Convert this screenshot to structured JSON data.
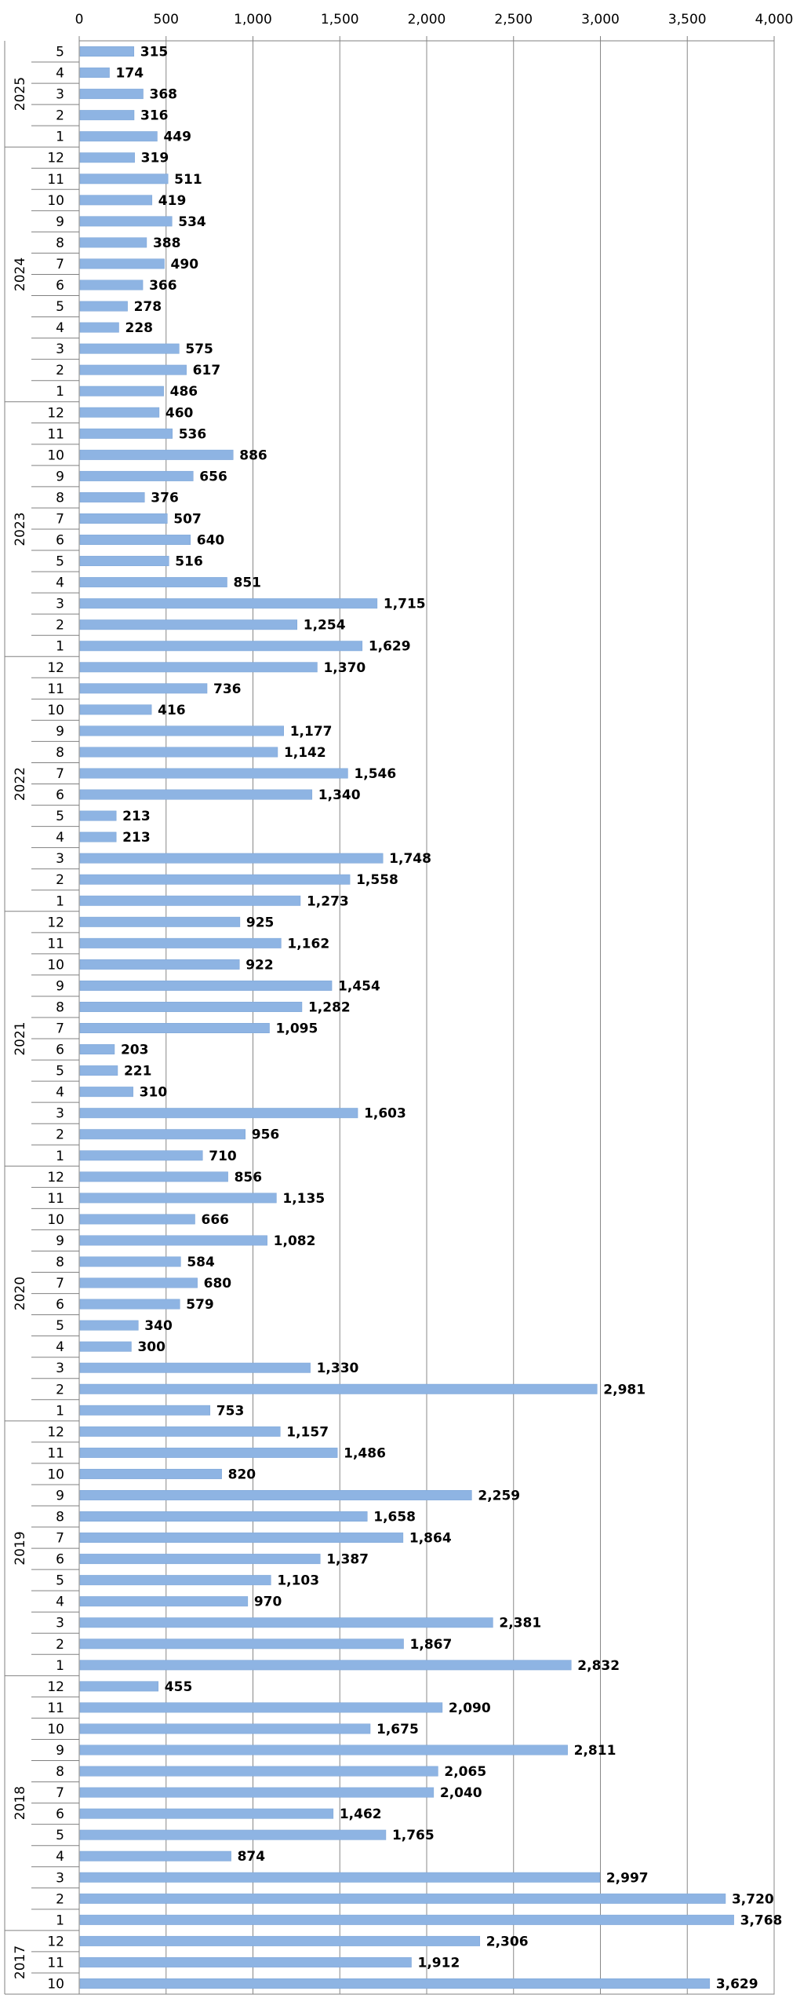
{
  "chart_data": {
    "type": "bar",
    "orientation": "horizontal",
    "x_ticks": [
      "0",
      "500",
      "1,000",
      "1,500",
      "2,000",
      "2,500",
      "3,000",
      "3,500",
      "4,000"
    ],
    "xlim": [
      0,
      4000
    ],
    "grid": true,
    "colors": {
      "bar": "#8eb4e3",
      "bar_edge": "#7aa3d6",
      "grid": "#888888",
      "axis": "#808080",
      "text": "#000000"
    },
    "groups": [
      {
        "year": "2025",
        "months": [
          "5",
          "4",
          "3",
          "2",
          "1"
        ],
        "values": [
          315,
          174,
          368,
          316,
          449
        ],
        "labels": [
          "315",
          "174",
          "368",
          "316",
          "449"
        ]
      },
      {
        "year": "2024",
        "months": [
          "12",
          "11",
          "10",
          "9",
          "8",
          "7",
          "6",
          "5",
          "4",
          "3",
          "2",
          "1"
        ],
        "values": [
          319,
          511,
          419,
          534,
          388,
          490,
          366,
          278,
          228,
          575,
          617,
          486
        ],
        "labels": [
          "319",
          "511",
          "419",
          "534",
          "388",
          "490",
          "366",
          "278",
          "228",
          "575",
          "617",
          "486"
        ]
      },
      {
        "year": "2023",
        "months": [
          "12",
          "11",
          "10",
          "9",
          "8",
          "7",
          "6",
          "5",
          "4",
          "3",
          "2",
          "1"
        ],
        "values": [
          460,
          536,
          886,
          656,
          376,
          507,
          640,
          516,
          851,
          1715,
          1254,
          1629
        ],
        "labels": [
          "460",
          "536",
          "886",
          "656",
          "376",
          "507",
          "640",
          "516",
          "851",
          "1,715",
          "1,254",
          "1,629"
        ]
      },
      {
        "year": "2022",
        "months": [
          "12",
          "11",
          "10",
          "9",
          "8",
          "7",
          "6",
          "5",
          "4",
          "3",
          "2",
          "1"
        ],
        "values": [
          1370,
          736,
          416,
          1177,
          1142,
          1546,
          1340,
          213,
          213,
          1748,
          1558,
          1273
        ],
        "labels": [
          "1,370",
          "736",
          "416",
          "1,177",
          "1,142",
          "1,546",
          "1,340",
          "213",
          "213",
          "1,748",
          "1,558",
          "1,273"
        ]
      },
      {
        "year": "2021",
        "months": [
          "12",
          "11",
          "10",
          "9",
          "8",
          "7",
          "6",
          "5",
          "4",
          "3",
          "2",
          "1"
        ],
        "values": [
          925,
          1162,
          922,
          1454,
          1282,
          1095,
          203,
          221,
          310,
          1603,
          956,
          710
        ],
        "labels": [
          "925",
          "1,162",
          "922",
          "1,454",
          "1,282",
          "1,095",
          "203",
          "221",
          "310",
          "1,603",
          "956",
          "710"
        ]
      },
      {
        "year": "2020",
        "months": [
          "12",
          "11",
          "10",
          "9",
          "8",
          "7",
          "6",
          "5",
          "4",
          "3",
          "2",
          "1"
        ],
        "values": [
          856,
          1135,
          666,
          1082,
          584,
          680,
          579,
          340,
          300,
          1330,
          2981,
          753
        ],
        "labels": [
          "856",
          "1,135",
          "666",
          "1,082",
          "584",
          "680",
          "579",
          "340",
          "300",
          "1,330",
          "2,981",
          "753"
        ]
      },
      {
        "year": "2019",
        "months": [
          "12",
          "11",
          "10",
          "9",
          "8",
          "7",
          "6",
          "5",
          "4",
          "3",
          "2",
          "1"
        ],
        "values": [
          1157,
          1486,
          820,
          2259,
          1658,
          1864,
          1387,
          1103,
          970,
          2381,
          1867,
          2832
        ],
        "labels": [
          "1,157",
          "1,486",
          "820",
          "2,259",
          "1,658",
          "1,864",
          "1,387",
          "1,103",
          "970",
          "2,381",
          "1,867",
          "2,832"
        ]
      },
      {
        "year": "2018",
        "months": [
          "12",
          "11",
          "10",
          "9",
          "8",
          "7",
          "6",
          "5",
          "4",
          "3",
          "2",
          "1"
        ],
        "values": [
          455,
          2090,
          1675,
          2811,
          2065,
          2040,
          1462,
          1765,
          874,
          2997,
          3720,
          3768
        ],
        "labels": [
          "455",
          "2,090",
          "1,675",
          "2,811",
          "2,065",
          "2,040",
          "1,462",
          "1,765",
          "874",
          "2,997",
          "3,720",
          "3,768"
        ]
      },
      {
        "year": "2017",
        "months": [
          "12",
          "11",
          "10"
        ],
        "values": [
          2306,
          1912,
          3629
        ],
        "labels": [
          "2,306",
          "1,912",
          "3,629"
        ]
      }
    ]
  }
}
